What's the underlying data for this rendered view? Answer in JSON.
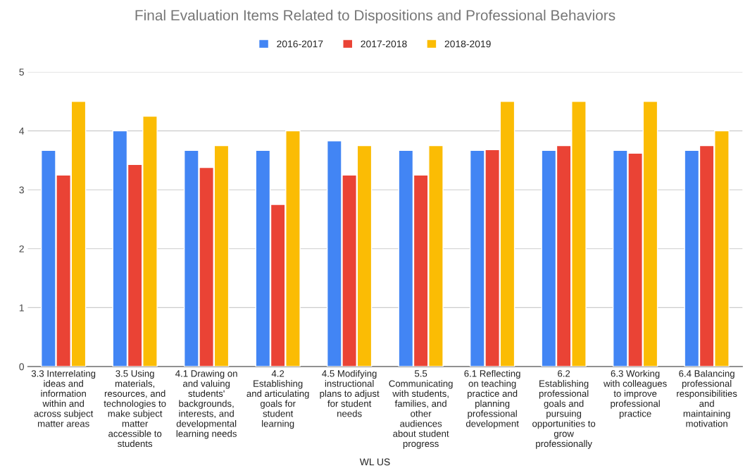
{
  "chart_data": {
    "type": "bar",
    "title": "Final Evaluation Items Related to Dispositions and Professional Behaviors",
    "xlabel": "WL US",
    "categories": [
      "3.3 Interrelating\nideas and\ninformation\nwithin and\nacross subject\nmatter areas",
      "3.5 Using\nmaterials,\nresources, and\ntechnologies to\nmake subject\nmatter\naccessible to\nstudents",
      "4.1 Drawing on\nand valuing\nstudents'\nbackgrounds,\ninterests, and\ndevelopmental\nlearning needs",
      "4.2\nEstablishing\nand articulating\ngoals for\nstudent\nlearning",
      "4.5 Modifying\ninstructional\nplans to adjust\nfor student\nneeds",
      "5.5\nCommunicating\nwith students,\nfamilies, and\nother\naudiences\nabout student\nprogress",
      "6.1 Reflecting\non teaching\npractice and\nplanning\nprofessional\ndevelopment",
      "6.2\nEstablishing\nprofessional\ngoals and\npursuing\nopportunities to\ngrow\nprofessionally",
      "6.3 Working\nwith colleagues\nto improve\nprofessional\npractice",
      "6.4 Balancing\nprofessional\nresponsibilities\nand\nmaintaining\nmotivation"
    ],
    "series": [
      {
        "name": "2016-2017",
        "color": "#4285f4",
        "values": [
          3.67,
          4.0,
          3.67,
          3.67,
          3.83,
          3.67,
          3.67,
          3.67,
          3.67,
          3.67
        ]
      },
      {
        "name": "2017-2018",
        "color": "#ea4335",
        "values": [
          3.25,
          3.43,
          3.38,
          2.75,
          3.25,
          3.25,
          3.68,
          3.75,
          3.62,
          3.75
        ]
      },
      {
        "name": "2018-2019",
        "color": "#fbbc04",
        "values": [
          4.5,
          4.25,
          3.75,
          4.0,
          3.75,
          3.75,
          4.5,
          4.5,
          4.5,
          4.0
        ]
      }
    ],
    "ylim": [
      0,
      5
    ],
    "yticks": [
      0,
      1,
      2,
      3,
      4,
      5
    ],
    "grid": "y",
    "legend": "top"
  }
}
